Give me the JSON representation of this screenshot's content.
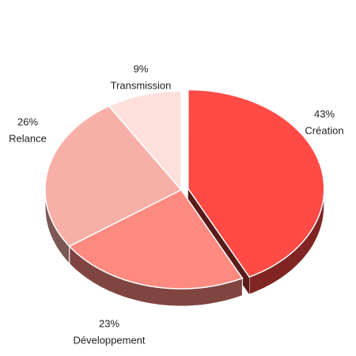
{
  "chart_data": {
    "type": "pie",
    "categories": [
      "Création",
      "Développement",
      "Relance",
      "Transmission"
    ],
    "values": [
      43,
      23,
      26,
      9
    ],
    "value_labels": [
      "43%",
      "23%",
      "26%",
      "9%"
    ],
    "colors": [
      "#ff4a45",
      "#ff8a80",
      "#f7b0a8",
      "#fde0dc"
    ]
  }
}
